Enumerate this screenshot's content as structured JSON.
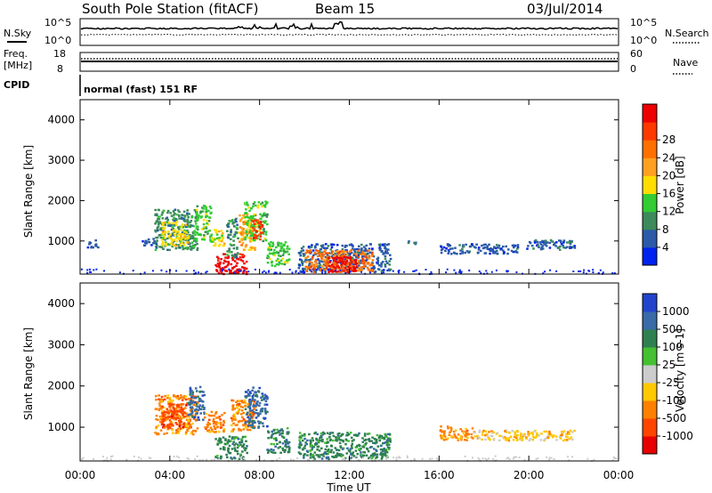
{
  "header": {
    "station": "South Pole Station (fitACF)",
    "beam": "Beam 15",
    "date": "03/Jul/2014"
  },
  "aux_labels": {
    "nsky": "N.Sky",
    "nsearch": "N.Search",
    "freq": "Freq.",
    "freq_unit": "[MHz]",
    "nave": "Nave",
    "cpid": "CPID",
    "program": "normal (fast) 151 RF",
    "nsky_top": "10^5",
    "nsky_bot": "10^0",
    "nsearch_top": "10^5",
    "nsearch_bot": "10^0",
    "freq_top": "18",
    "freq_bot": "8",
    "nave_top": "60",
    "nave_bot": "0"
  },
  "colors": {
    "power": [
      "#0022ee",
      "#2a5aa8",
      "#3d8a5a",
      "#33cc33",
      "#ffdd00",
      "#ffa020",
      "#ff7000",
      "#ff3800",
      "#ee0000"
    ],
    "velocity": [
      "#2244cc",
      "#3a6aa8",
      "#2e8050",
      "#44c030",
      "#cccccc",
      "#ffc800",
      "#ff8000",
      "#ff4400",
      "#e60000"
    ]
  },
  "chart_data": [
    {
      "type": "heatmap",
      "name": "power-panel",
      "ylabel": "Slant Range [km]",
      "xlabel": "",
      "xlim": [
        0,
        24
      ],
      "ylim": [
        180,
        4500
      ],
      "yticks": [
        1000,
        2000,
        3000,
        4000
      ],
      "colorbar_label": "Power [dB]",
      "colorbar_ticks": [
        "4",
        "8",
        "12",
        "16",
        "20",
        "24",
        "28"
      ],
      "regions": [
        {
          "x": [
            0.3,
            0.8
          ],
          "y": [
            850,
            1050
          ],
          "bin": 1
        },
        {
          "x": [
            2.7,
            3.3
          ],
          "y": [
            900,
            1100
          ],
          "bin": 1
        },
        {
          "x": [
            3.3,
            5.2
          ],
          "y": [
            800,
            1800
          ],
          "bin": 2
        },
        {
          "x": [
            3.6,
            4.8
          ],
          "y": [
            900,
            1500
          ],
          "bin": 4
        },
        {
          "x": [
            5.0,
            5.8
          ],
          "y": [
            1000,
            1900
          ],
          "bin": 3
        },
        {
          "x": [
            5.7,
            6.4
          ],
          "y": [
            900,
            1300
          ],
          "bin": 4
        },
        {
          "x": [
            6.0,
            7.4
          ],
          "y": [
            200,
            700
          ],
          "bin": 8
        },
        {
          "x": [
            6.5,
            7.0
          ],
          "y": [
            600,
            1600
          ],
          "bin": 2
        },
        {
          "x": [
            7.0,
            7.8
          ],
          "y": [
            800,
            1700
          ],
          "bin": 5
        },
        {
          "x": [
            7.3,
            8.3
          ],
          "y": [
            1000,
            2000
          ],
          "bin": 3
        },
        {
          "x": [
            7.6,
            8.1
          ],
          "y": [
            1050,
            1550
          ],
          "bin": 7
        },
        {
          "x": [
            8.3,
            9.3
          ],
          "y": [
            400,
            1000
          ],
          "bin": 3
        },
        {
          "x": [
            9.7,
            13.8
          ],
          "y": [
            250,
            950
          ],
          "bin": 1
        },
        {
          "x": [
            10.0,
            13.0
          ],
          "y": [
            250,
            800
          ],
          "bin": 6
        },
        {
          "x": [
            11.0,
            12.3
          ],
          "y": [
            250,
            650
          ],
          "bin": 8
        },
        {
          "x": [
            14.5,
            15.0
          ],
          "y": [
            950,
            1050
          ],
          "bin": 1
        },
        {
          "x": [
            16.0,
            19.5
          ],
          "y": [
            700,
            950
          ],
          "bin": 1
        },
        {
          "x": [
            19.8,
            22.0
          ],
          "y": [
            800,
            1050
          ],
          "bin": 1
        }
      ]
    },
    {
      "type": "heatmap",
      "name": "velocity-panel",
      "ylabel": "Slant Range [km]",
      "xlabel": "Time UT",
      "xlim": [
        0,
        24
      ],
      "ylim": [
        180,
        4500
      ],
      "yticks": [
        1000,
        2000,
        3000,
        4000
      ],
      "xticks": [
        "00:00",
        "04:00",
        "08:00",
        "12:00",
        "16:00",
        "20:00",
        "00:00"
      ],
      "colorbar_label": "Velocity [m s-1]",
      "colorbar_ticks": [
        "1000",
        "500",
        "100",
        "25",
        "-25",
        "-100",
        "-500",
        "-1000"
      ],
      "regions": [
        {
          "x": [
            3.3,
            5.2
          ],
          "y": [
            850,
            1800
          ],
          "bin": 6
        },
        {
          "x": [
            3.6,
            4.7
          ],
          "y": [
            1000,
            1600
          ],
          "bin": 7
        },
        {
          "x": [
            4.8,
            5.5
          ],
          "y": [
            1200,
            2000
          ],
          "bin": 1
        },
        {
          "x": [
            5.5,
            6.4
          ],
          "y": [
            900,
            1400
          ],
          "bin": 6
        },
        {
          "x": [
            6.0,
            7.4
          ],
          "y": [
            250,
            800
          ],
          "bin": 2
        },
        {
          "x": [
            6.7,
            7.8
          ],
          "y": [
            900,
            1700
          ],
          "bin": 6
        },
        {
          "x": [
            7.3,
            8.3
          ],
          "y": [
            1000,
            2000
          ],
          "bin": 1
        },
        {
          "x": [
            8.3,
            9.3
          ],
          "y": [
            400,
            1000
          ],
          "bin": 2
        },
        {
          "x": [
            9.7,
            13.8
          ],
          "y": [
            250,
            900
          ],
          "bin": 2
        },
        {
          "x": [
            16.0,
            17.5
          ],
          "y": [
            700,
            1050
          ],
          "bin": 6
        },
        {
          "x": [
            17.5,
            22.0
          ],
          "y": [
            700,
            950
          ],
          "bin": 5
        }
      ]
    }
  ]
}
